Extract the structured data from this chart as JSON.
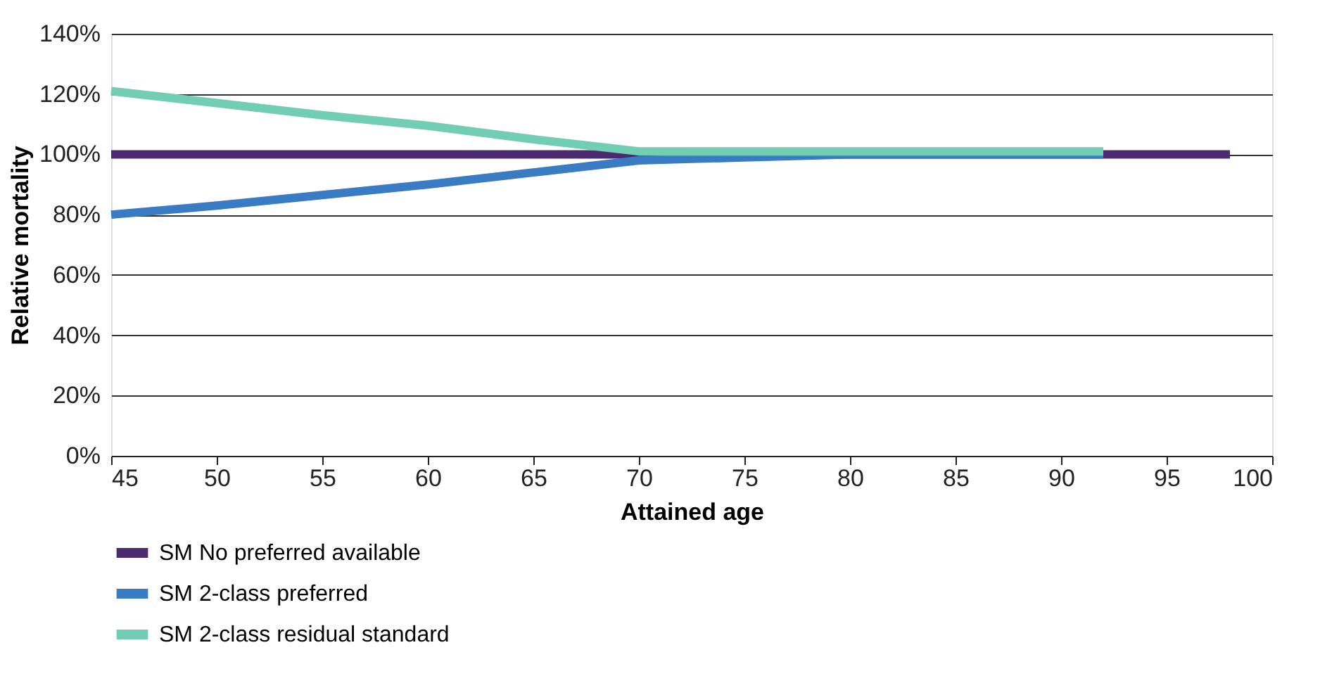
{
  "chart_data": {
    "type": "line",
    "xlabel": "Attained age",
    "ylabel": "Relative mortality",
    "xlim": [
      45,
      100
    ],
    "xticks": [
      45,
      50,
      55,
      60,
      65,
      70,
      75,
      80,
      85,
      90,
      95,
      100
    ],
    "ylim": [
      0,
      140
    ],
    "yticks": [
      {
        "value": 0,
        "label": "0%"
      },
      {
        "value": 20,
        "label": "20%"
      },
      {
        "value": 40,
        "label": "40%"
      },
      {
        "value": 60,
        "label": "60%"
      },
      {
        "value": 80,
        "label": "80%"
      },
      {
        "value": 100,
        "label": "100%"
      },
      {
        "value": 120,
        "label": "120%"
      },
      {
        "value": 140,
        "label": "140%"
      }
    ],
    "grid": "y",
    "legend": "bottom",
    "marker": "none",
    "line_style": "solid",
    "series": [
      {
        "name": "SM No preferred available",
        "color": "#4b2a6e",
        "x": [
          45,
          98
        ],
        "values": [
          100,
          100
        ]
      },
      {
        "name": "SM 2-class preferred",
        "color": "#3a7cc3",
        "x": [
          45,
          50,
          55,
          60,
          65,
          70,
          75,
          80,
          92
        ],
        "values": [
          80,
          83,
          86.5,
          90,
          94,
          98,
          99,
          100,
          100
        ]
      },
      {
        "name": "SM 2-class residual standard",
        "color": "#72cdb5",
        "x": [
          45,
          50,
          55,
          60,
          65,
          70,
          75,
          80,
          92
        ],
        "values": [
          121,
          117,
          113,
          109.5,
          105,
          101,
          101,
          101,
          101
        ]
      }
    ]
  }
}
